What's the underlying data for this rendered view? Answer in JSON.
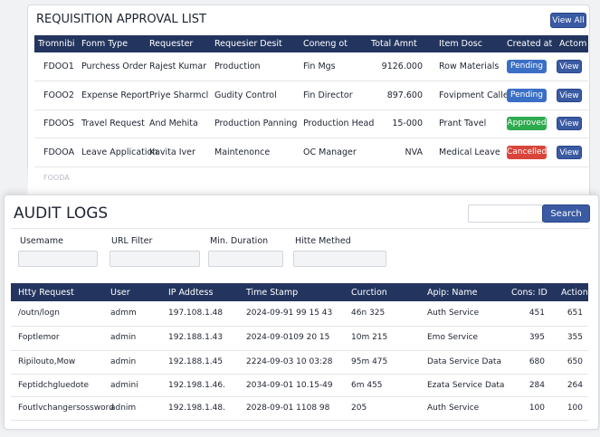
{
  "requisitions": {
    "title": "REQUISITION APPROVAL LIST",
    "view_all": "View All",
    "columns": [
      "Tromnibi",
      "Fonm Type",
      "Requester",
      "Requesier Desit",
      "Coneng ot",
      "Total Amnt",
      "Item Dosc",
      "Created at",
      "Actom"
    ],
    "rows": [
      {
        "cells": [
          "FDOO1",
          "Purchess Order",
          "Rajest Kumar",
          "Production",
          "Fin Mgs",
          "9126.000",
          "Row Materials"
        ],
        "status": "Pending",
        "status_color": "#3b6fc6",
        "action": "View"
      },
      {
        "cells": [
          "FOOO2",
          "Expense Report",
          "Priye Sharmcl",
          "Gudity Control",
          "Fin Director",
          "897.600",
          "Fovipment Caller"
        ],
        "status": "Pending",
        "status_color": "#3b6fc6",
        "action": "View"
      },
      {
        "cells": [
          "FDOOS",
          "Travel Request",
          "And Mehita",
          "Production Panning",
          "Production Head",
          "15-000",
          "Prant Tavel"
        ],
        "status": "Approved",
        "status_color": "#2eaa4f",
        "action": "View"
      },
      {
        "cells": [
          "FDOOA",
          "Leave Application",
          "Kavita Iver",
          "Maintenonce",
          "OC Manager",
          "NVA",
          "Medical Leave"
        ],
        "status": "Cancelled",
        "status_color": "#d9453a",
        "action": "View"
      }
    ],
    "faded_row": "FOODA"
  },
  "audit_logs": {
    "title": "AUDIT LOGS",
    "search_button": "Search",
    "filters": [
      "Usemame",
      "URL Filter",
      "Min. Duration",
      "Hitte Methed"
    ],
    "columns": [
      "Htty Request",
      "User",
      "IP Addtess",
      "Time Stamp",
      "Curction",
      "Apip: Name",
      "Cons: ID",
      "Action"
    ],
    "rows": [
      [
        "/outn/logn",
        "admm",
        "197.108.1.48",
        "2024-09-91 99 15 43",
        "46n 325",
        "Auth Service",
        "451",
        "651"
      ],
      [
        "Foptlemor",
        "admin",
        "192.188.1.43",
        "2024-09-0109 20 15",
        "10m 215",
        "Emo Service",
        "395",
        "355"
      ],
      [
        "Ripilouto,Mow",
        "admin",
        "192.188.1.45",
        "2224-09-03 10 03:28",
        "95m 475",
        "Data Service Data",
        "680",
        "650"
      ],
      [
        "Feptidchgluedote",
        "admini",
        "192.198.1.46.",
        "2034-09-01 10.15-49",
        "6m 455",
        "Ezata Service Data",
        "284",
        "264"
      ],
      [
        "Foutlvchangersossword",
        "adnim",
        "192.198.1.48.",
        "2028-09-01 1108 98",
        "205",
        "Auth Service",
        "100",
        "100"
      ]
    ]
  }
}
